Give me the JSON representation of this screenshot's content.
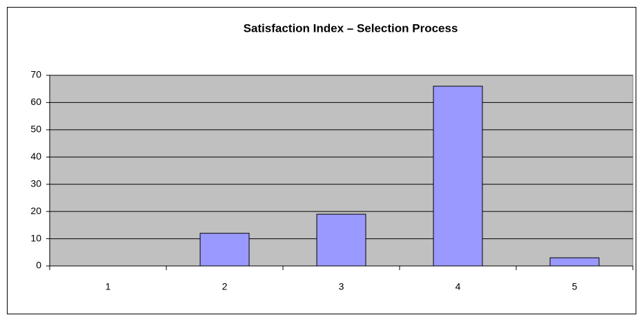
{
  "chart_data": {
    "type": "bar",
    "title": "Satisfaction Index – Selection Process",
    "categories": [
      "1",
      "2",
      "3",
      "4",
      "5"
    ],
    "values": [
      0,
      12,
      19,
      66,
      3
    ],
    "color": "#9999ff",
    "ylim": [
      0,
      70
    ],
    "yticks": [
      0,
      10,
      20,
      30,
      40,
      50,
      60,
      70
    ],
    "grid": true
  }
}
